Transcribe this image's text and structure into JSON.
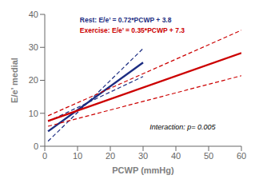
{
  "chart_data": {
    "type": "line",
    "xlabel": "PCWP (mmHg)",
    "ylabel": "E/e’ medial",
    "xlim": [
      0,
      60
    ],
    "ylim": [
      0,
      40
    ],
    "xticks": [
      0,
      10,
      20,
      30,
      40,
      50,
      60
    ],
    "yticks": [
      0,
      10,
      20,
      30,
      40
    ],
    "grid": false,
    "series": [
      {
        "name": "Rest: E/e’ = 0.72*PCWP + 3.8",
        "color": "#1c2d82",
        "line_style": "solid",
        "x": [
          1,
          30
        ],
        "values": [
          4.52,
          25.4
        ]
      },
      {
        "color": "#1c2d82",
        "line_style": "dashed",
        "x": [
          1,
          30
        ],
        "values": [
          1.52,
          29.65
        ]
      },
      {
        "color": "#1c2d82",
        "line_style": "dashed",
        "x": [
          1,
          30
        ],
        "values": [
          7.52,
          21.15
        ]
      },
      {
        "name": "Exercise: E/e’ = 0.35*PCWP + 7.3",
        "color": "#cc0000",
        "line_style": "solid",
        "x": [
          1,
          60
        ],
        "values": [
          7.65,
          28.3
        ]
      },
      {
        "color": "#cc0000",
        "line_style": "dashed",
        "x": [
          1,
          60
        ],
        "values": [
          9.24,
          35.2
        ]
      },
      {
        "color": "#cc0000",
        "line_style": "dashed",
        "x": [
          1,
          60
        ],
        "values": [
          6.06,
          21.4
        ]
      }
    ],
    "annotations": [
      {
        "text": "Interaction: p= 0.005",
        "x": 32,
        "y": 4.5
      }
    ]
  }
}
